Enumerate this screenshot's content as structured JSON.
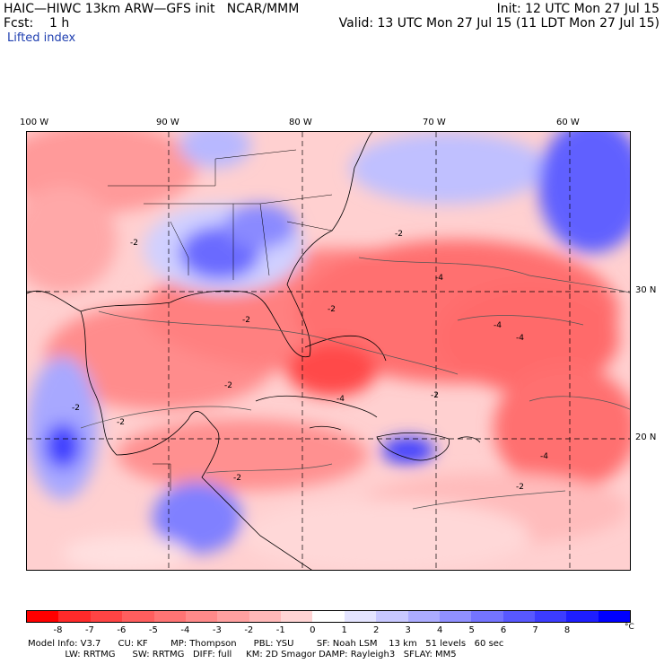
{
  "header": {
    "line1": "HAIC—HIWC 13km ARW—GFS init   NCAR/MMM",
    "line2": "Fcst:    1 h",
    "init": "Init: 12 UTC Mon 27 Jul 15",
    "valid": "Valid: 13 UTC Mon 27 Jul 15 (11 LDT Mon 27 Jul 15)",
    "field": "Lifted index"
  },
  "axes": {
    "longitudes": [
      "100 W",
      "90 W",
      "80 W",
      "70 W",
      "60 W"
    ],
    "latitudes": [
      "30 N",
      "20 N"
    ]
  },
  "contour_labels": [
    "-2",
    "-2",
    "-2",
    "-2",
    "-2",
    "-2",
    "-2",
    "-2",
    "-4",
    "-4",
    "-4",
    "-4",
    "-4",
    "-2",
    "-2"
  ],
  "legend": {
    "labels": [
      "-8",
      "-7",
      "-6",
      "-5",
      "-4",
      "-3",
      "-2",
      "-1",
      "0",
      "1",
      "2",
      "3",
      "4",
      "5",
      "6",
      "7",
      "8"
    ],
    "unit": "°C",
    "colors": [
      "#ff0000",
      "#ff2a2a",
      "#ff4444",
      "#ff5e5e",
      "#ff7474",
      "#ff8a8a",
      "#ffa0a0",
      "#ffb8b8",
      "#ffd4d4",
      "#ffffff",
      "#e4e4ff",
      "#c8c8ff",
      "#acacff",
      "#9090ff",
      "#7474ff",
      "#5858ff",
      "#3c3cff",
      "#1e1eff",
      "#0000ff"
    ]
  },
  "model_info": {
    "line1": "Model Info: V3.7      CU: KF        MP: Thompson      PBL: YSU        SF: Noah LSM    13 km   51 levels   60 sec",
    "line2": "             LW: RRTMG      SW: RRTMG   DIFF: full     KM: 2D Smagor DAMP: Rayleigh3   SFLAY: MM5"
  }
}
